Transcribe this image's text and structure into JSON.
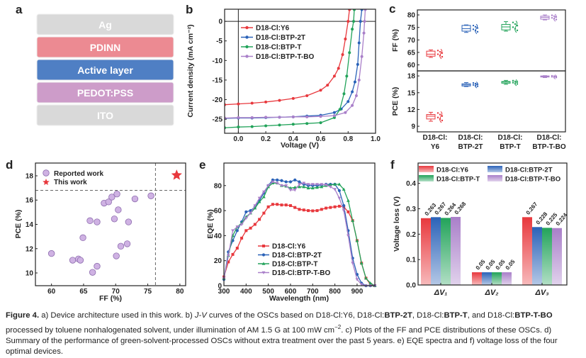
{
  "panel_a": {
    "label": "a",
    "layers": [
      {
        "name": "Ag",
        "color": "#d9d9d9"
      },
      {
        "name": "PDINN",
        "color": "#ec8a92"
      },
      {
        "name": "Active layer",
        "color": "#4f7fc4"
      },
      {
        "name": "PEDOT:PSS",
        "color": "#cd9cc9"
      },
      {
        "name": "ITO",
        "color": "#d9d9d9"
      }
    ]
  },
  "colors": {
    "Y6": "#e8383d",
    "BTP-2T": "#2a62b8",
    "BTP-T": "#22a35a",
    "BTP-T-BO": "#a97fc9"
  },
  "chart_data": [
    {
      "panel": "b",
      "type": "line",
      "xlabel": "Voltage (V)",
      "ylabel": "Current density (mA cm⁻²)",
      "xlim": [
        -0.1,
        1.0
      ],
      "ylim": [
        -28.6,
        3.1
      ],
      "xticks": [
        0.0,
        0.2,
        0.4,
        0.6,
        0.8,
        1.0
      ],
      "xtick_labels": [
        "0.0",
        "0.2",
        "0.4",
        "0.6",
        "0.8",
        "1.0"
      ],
      "yticks": [
        0,
        -5,
        -10,
        -15,
        -20,
        -25
      ],
      "ytick_labels": [
        "0",
        "-5",
        "-10",
        "-15",
        "-20",
        "-25"
      ],
      "legend": "top-left",
      "series": [
        {
          "name": "D18-Cl:Y6",
          "key": "Y6",
          "points": [
            [
              -0.1,
              -21.3
            ],
            [
              0,
              -21.1
            ],
            [
              0.1,
              -20.9
            ],
            [
              0.2,
              -20.6
            ],
            [
              0.3,
              -20.2
            ],
            [
              0.4,
              -19.7
            ],
            [
              0.5,
              -19.0
            ],
            [
              0.6,
              -17.6
            ],
            [
              0.65,
              -16.3
            ],
            [
              0.7,
              -14.0
            ],
            [
              0.73,
              -12.0
            ],
            [
              0.76,
              -8.5
            ],
            [
              0.78,
              -4.5
            ],
            [
              0.8,
              0
            ],
            [
              0.81,
              3
            ]
          ]
        },
        {
          "name": "D18-Cl:BTP-2T",
          "key": "BTP-2T",
          "points": [
            [
              -0.1,
              -24.8
            ],
            [
              0,
              -24.7
            ],
            [
              0.1,
              -24.7
            ],
            [
              0.2,
              -24.6
            ],
            [
              0.3,
              -24.5
            ],
            [
              0.4,
              -24.4
            ],
            [
              0.5,
              -24.2
            ],
            [
              0.6,
              -24.0
            ],
            [
              0.7,
              -23.3
            ],
            [
              0.75,
              -22.4
            ],
            [
              0.8,
              -20.5
            ],
            [
              0.83,
              -18
            ],
            [
              0.85,
              -15.5
            ],
            [
              0.87,
              -11
            ],
            [
              0.88,
              -5.5
            ],
            [
              0.89,
              0
            ],
            [
              0.9,
              3
            ]
          ]
        },
        {
          "name": "D18-Cl:BTP-T",
          "key": "BTP-T",
          "points": [
            [
              -0.1,
              -27.2
            ],
            [
              0,
              -27.0
            ],
            [
              0.1,
              -26.9
            ],
            [
              0.2,
              -26.7
            ],
            [
              0.3,
              -26.5
            ],
            [
              0.4,
              -26.3
            ],
            [
              0.5,
              -26.1
            ],
            [
              0.6,
              -25.9
            ],
            [
              0.7,
              -24.6
            ],
            [
              0.74,
              -22.5
            ],
            [
              0.77,
              -18.5
            ],
            [
              0.79,
              -14
            ],
            [
              0.81,
              -8
            ],
            [
              0.83,
              -2
            ],
            [
              0.84,
              0
            ],
            [
              0.845,
              3
            ]
          ]
        },
        {
          "name": "D18-Cl:BTP-T-BO",
          "key": "BTP-T-BO",
          "points": [
            [
              -0.1,
              -24.7
            ],
            [
              0,
              -24.6
            ],
            [
              0.1,
              -24.6
            ],
            [
              0.2,
              -24.5
            ],
            [
              0.3,
              -24.5
            ],
            [
              0.4,
              -24.4
            ],
            [
              0.5,
              -24.4
            ],
            [
              0.6,
              -24.3
            ],
            [
              0.7,
              -24.1
            ],
            [
              0.78,
              -23.3
            ],
            [
              0.83,
              -21.5
            ],
            [
              0.86,
              -19
            ],
            [
              0.88,
              -15
            ],
            [
              0.9,
              -9
            ],
            [
              0.915,
              -3
            ],
            [
              0.92,
              0
            ],
            [
              0.925,
              3
            ]
          ]
        }
      ]
    },
    {
      "panel": "c",
      "type": "box",
      "categories": [
        [
          "D18-Cl:",
          "Y6"
        ],
        [
          "D18-Cl:",
          "BTP-2T"
        ],
        [
          "D18-Cl:",
          "BTP-T"
        ],
        [
          "D18-Cl:",
          "BTP-T-BO"
        ]
      ],
      "keys": [
        "Y6",
        "BTP-2T",
        "BTP-T",
        "BTP-T-BO"
      ],
      "subplots": [
        {
          "ylabel": "FF (%)",
          "ylim": [
            57.6,
            82
          ],
          "yticks": [
            60,
            65,
            70,
            75,
            80
          ],
          "ytick_labels": [
            "60",
            "65",
            "70",
            "75",
            "80"
          ],
          "stats": [
            {
              "min": 63,
              "q1": 63.5,
              "median": 64.3,
              "q3": 65.5,
              "max": 66
            },
            {
              "min": 73,
              "q1": 73.5,
              "median": 74.5,
              "q3": 75.8,
              "max": 76
            },
            {
              "min": 73.5,
              "q1": 74,
              "median": 75.2,
              "q3": 76.2,
              "max": 77.3
            },
            {
              "min": 78,
              "q1": 78.3,
              "median": 79,
              "q3": 79.5,
              "max": 80
            }
          ]
        },
        {
          "ylabel": "PCE (%)",
          "ylim": [
            8,
            18.9
          ],
          "yticks": [
            9,
            12,
            15,
            18
          ],
          "ytick_labels": [
            "9",
            "12",
            "15",
            "18"
          ],
          "stats": [
            {
              "min": 9.9,
              "q1": 10.3,
              "median": 10.8,
              "q3": 11.1,
              "max": 11.5
            },
            {
              "min": 16.1,
              "q1": 16.2,
              "median": 16.4,
              "q3": 16.6,
              "max": 16.8
            },
            {
              "min": 16.5,
              "q1": 16.7,
              "median": 16.9,
              "q3": 17.0,
              "max": 17.2
            },
            {
              "min": 17.7,
              "q1": 17.8,
              "median": 17.9,
              "q3": 18.0,
              "max": 18.05
            }
          ]
        }
      ]
    },
    {
      "panel": "d",
      "type": "scatter",
      "xlabel": "FF (%)",
      "ylabel": "PCE (%)",
      "xlim": [
        57.5,
        80.9
      ],
      "ylim": [
        8.95,
        19.05
      ],
      "xticks": [
        60,
        65,
        70,
        75,
        80
      ],
      "xtick_labels": [
        "60",
        "65",
        "70",
        "75",
        "80"
      ],
      "yticks": [
        10,
        12,
        14,
        16,
        18
      ],
      "ytick_labels": [
        "10",
        "12",
        "14",
        "16",
        "18"
      ],
      "reference_lines": {
        "x": 76.2,
        "y": 16.8
      },
      "legend": "top-left",
      "series": [
        {
          "name": "Reported work",
          "marker": "circle",
          "points": [
            [
              60,
              11.6
            ],
            [
              63.3,
              11.05
            ],
            [
              64.2,
              11.15
            ],
            [
              64.5,
              11.05
            ],
            [
              64.9,
              12.9
            ],
            [
              66,
              14.3
            ],
            [
              66.4,
              10.05
            ],
            [
              67.1,
              10.55
            ],
            [
              67.1,
              14.2
            ],
            [
              68.2,
              15.75
            ],
            [
              68.9,
              15.85
            ],
            [
              69.4,
              16.25
            ],
            [
              69.8,
              14.45
            ],
            [
              70.1,
              11.4
            ],
            [
              70.2,
              16.5
            ],
            [
              70.4,
              15.2
            ],
            [
              70.8,
              12.2
            ],
            [
              71.8,
              12.4
            ],
            [
              72,
              14.2
            ],
            [
              73,
              16.1
            ],
            [
              75.5,
              16.35
            ]
          ]
        },
        {
          "name": "This work",
          "marker": "star",
          "points": [
            [
              79.5,
              18.05
            ]
          ]
        }
      ]
    },
    {
      "panel": "e",
      "type": "line",
      "xlabel": "Wavelength (nm)",
      "ylabel": "EQE (%)",
      "xlim": [
        300,
        980
      ],
      "ylim": [
        0,
        98
      ],
      "xticks": [
        300,
        400,
        500,
        600,
        700,
        800,
        900
      ],
      "xtick_labels": [
        "300",
        "400",
        "500",
        "600",
        "700",
        "800",
        "900"
      ],
      "yticks": [
        0,
        20,
        40,
        60,
        80
      ],
      "ytick_labels": [
        "0",
        "20",
        "40",
        "60",
        "80"
      ],
      "legend": "bottom-center",
      "x": [
        300,
        320,
        340,
        360,
        380,
        400,
        420,
        440,
        460,
        480,
        500,
        520,
        540,
        560,
        580,
        600,
        620,
        640,
        660,
        680,
        700,
        720,
        740,
        760,
        780,
        800,
        820,
        840,
        860,
        880,
        900,
        920,
        940,
        960,
        980
      ],
      "series": [
        {
          "name": "D18-Cl:Y6",
          "key": "Y6",
          "values": [
            7,
            19,
            25,
            30,
            38,
            44,
            46,
            49,
            53,
            58,
            63,
            65,
            65,
            64.5,
            64.5,
            64,
            62.5,
            61,
            60.5,
            60,
            59.8,
            60,
            61,
            62,
            62.5,
            63,
            63.5,
            63,
            59,
            52,
            36,
            18,
            6,
            1,
            0
          ]
        },
        {
          "name": "D18-Cl:BTP-2T",
          "key": "BTP-2T",
          "values": [
            5,
            27,
            36,
            44,
            51,
            59,
            60,
            63,
            68,
            74,
            80,
            84.5,
            84.5,
            84,
            83,
            83,
            84.5,
            83,
            81,
            80,
            80,
            80,
            80.5,
            81,
            81,
            81,
            76,
            64,
            44,
            22,
            9,
            2,
            0,
            0,
            0
          ]
        },
        {
          "name": "D18-Cl:BTP-T",
          "key": "BTP-T",
          "values": [
            6,
            24,
            40,
            47,
            50,
            55,
            58,
            62,
            67,
            71,
            79,
            82,
            82,
            80,
            79.5,
            78,
            78.5,
            79,
            79,
            78,
            78,
            78.5,
            79,
            80,
            80.5,
            81,
            81,
            77,
            68,
            52,
            36,
            18,
            6,
            2,
            0
          ]
        },
        {
          "name": "D18-Cl:BTP-T-BO",
          "key": "BTP-T-BO",
          "values": [
            6,
            24,
            44,
            47,
            49,
            54,
            58,
            64,
            70,
            75,
            80,
            83,
            82,
            80,
            80,
            76.5,
            76.5,
            81,
            82,
            81,
            81,
            81,
            81,
            80.5,
            79,
            77,
            70,
            60,
            40,
            18,
            5,
            1,
            0,
            0,
            0
          ]
        }
      ]
    },
    {
      "panel": "f",
      "type": "bar",
      "ylabel": "Voltage loss (V)",
      "ylim": [
        0,
        0.48
      ],
      "yticks": [
        0,
        0.1,
        0.2,
        0.3,
        0.4
      ],
      "ytick_labels": [
        "0.0",
        "0.1",
        "0.2",
        "0.3",
        "0.4"
      ],
      "categories": [
        "ΔV₁",
        "ΔV₂",
        "ΔV₃"
      ],
      "legend": "top",
      "series": [
        {
          "name": "D18-Cl:Y6",
          "key": "Y6",
          "values": [
            0.263,
            0.05,
            0.267
          ],
          "labels": [
            "0.263",
            "0.05",
            "0.267"
          ]
        },
        {
          "name": "D18-Cl:BTP-2T",
          "key": "BTP-2T",
          "values": [
            0.267,
            0.05,
            0.228
          ],
          "labels": [
            "0.267",
            "0.05",
            "0.228"
          ]
        },
        {
          "name": "D18-Cl:BTP-T",
          "key": "BTP-T",
          "values": [
            0.264,
            0.05,
            0.225
          ],
          "labels": [
            "0.264",
            "0.05",
            "0.225"
          ]
        },
        {
          "name": "D18-Cl:BTP-T-BO",
          "key": "BTP-T-BO",
          "values": [
            0.268,
            0.05,
            0.224
          ],
          "labels": [
            "0.268",
            "0.05",
            "0.224"
          ]
        }
      ]
    }
  ],
  "caption": {
    "segments": [
      {
        "text": "Figure 4.",
        "style": "b"
      },
      {
        "text": " a) Device architecture used in this work. b) ",
        "style": ""
      },
      {
        "text": "J-V",
        "style": "i"
      },
      {
        "text": " curves of the OSCs based on D18-Cl:Y6, D18-Cl:",
        "style": ""
      },
      {
        "text": "BTP-2T",
        "style": "b"
      },
      {
        "text": ", D18-Cl:",
        "style": ""
      },
      {
        "text": "BTP-T",
        "style": "b"
      },
      {
        "text": ", and D18-Cl:",
        "style": ""
      },
      {
        "text": "BTP-T-BO",
        "style": "b"
      },
      {
        "text": " processed by toluene nonhalogenated solvent, under illumination of AM 1.5 G at 100 mW cm",
        "style": ""
      },
      {
        "text": "−2",
        "style": "sup"
      },
      {
        "text": ". c) Plots of the FF and PCE distributions of these OSCs. d) Summary of the performance of green-solvent-processed OSCs without extra treatment over the past 5 years. e) EQE spectra and f) voltage loss of the four optimal devices.",
        "style": ""
      }
    ]
  }
}
